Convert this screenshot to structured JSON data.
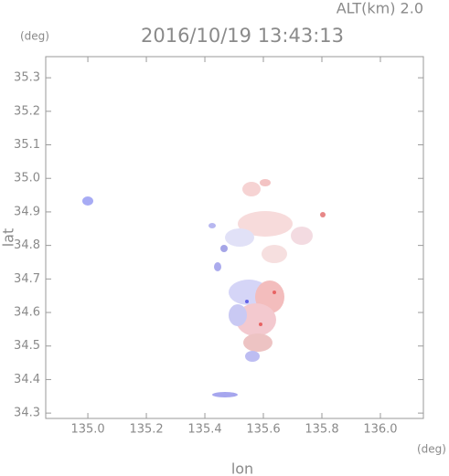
{
  "chart_data": {
    "type": "map",
    "title": "2016/10/19 13:43:13",
    "subtitle": "ALT(km) 2.0",
    "x_label": "lon",
    "y_label": "lat",
    "x_unit": "(deg)",
    "y_unit": "(deg)",
    "xlim": [
      134.856,
      136.147
    ],
    "ylim": [
      34.284,
      35.363
    ],
    "xticks": [
      {
        "value": 135,
        "label": "135.0"
      },
      135.2,
      135.4,
      135.6,
      135.8,
      {
        "value": 136,
        "label": "136.0"
      }
    ],
    "yticks": [
      34.3,
      34.4,
      34.5,
      34.6,
      34.7,
      34.8,
      34.9,
      {
        "value": 35,
        "label": "35.0"
      },
      35.1,
      35.2,
      35.3
    ]
  }
}
